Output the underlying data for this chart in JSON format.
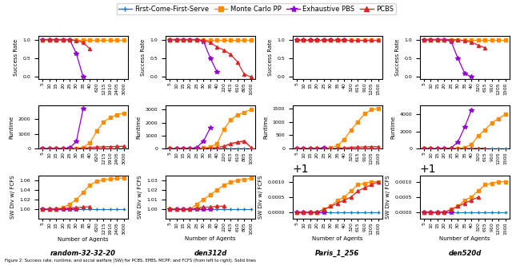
{
  "maps": [
    "random-32-32-20",
    "den312d",
    "Paris_1_256",
    "den520d"
  ],
  "legend": {
    "labels": [
      "First-Come-First-Serve",
      "Monte Carlo PP",
      "Exhaustive PBS",
      "PCBS"
    ],
    "colors": [
      "#1f77b4",
      "#ff8c00",
      "#9400d3",
      "#d62728"
    ],
    "markers": [
      "+",
      "s",
      "*",
      "^"
    ],
    "markersizes": [
      5,
      4,
      6,
      4
    ]
  },
  "colors": {
    "fcfs": "#1f77b4",
    "mcpp": "#ff8c00",
    "epbs": "#9400d3",
    "pcbs": "#d62728"
  },
  "markers": {
    "fcfs": "+",
    "mcpp": "s",
    "epbs": "*",
    "pcbs": "^"
  },
  "col0": {
    "x_labels": [
      "5",
      "10",
      "15",
      "20",
      "25",
      "30",
      "35",
      "40",
      "620",
      "1215",
      "1910",
      "2405",
      "3000"
    ],
    "success": {
      "fcfs": [
        1,
        1,
        1,
        1,
        1,
        1,
        1,
        1,
        1,
        1,
        1,
        1,
        1
      ],
      "mcpp": [
        1,
        1,
        1,
        1,
        1,
        1,
        1,
        1,
        1,
        1,
        1,
        1,
        1
      ],
      "epbs": [
        1,
        1,
        1,
        1,
        1,
        0.62,
        0.0,
        null,
        null,
        null,
        null,
        null,
        null
      ],
      "pcbs": [
        1,
        1,
        1,
        1,
        1,
        0.97,
        0.92,
        0.75,
        null,
        null,
        null,
        null,
        null
      ]
    },
    "runtime": {
      "fcfs": [
        0,
        0,
        0,
        0,
        0,
        0,
        0,
        0,
        0,
        0,
        0,
        0,
        0
      ],
      "mcpp": [
        0,
        0,
        2,
        5,
        10,
        30,
        100,
        400,
        1200,
        1800,
        2100,
        2300,
        2400
      ],
      "epbs": [
        0,
        0,
        3,
        10,
        60,
        500,
        2700,
        null,
        null,
        null,
        null,
        null,
        null
      ],
      "pcbs": [
        0,
        0,
        1,
        2,
        5,
        15,
        40,
        90,
        120,
        135,
        145,
        155,
        165
      ],
      "pcbs_err": [
        0,
        0,
        0.5,
        1,
        2,
        5,
        10,
        20,
        25,
        28,
        30,
        32,
        34
      ]
    },
    "sw": {
      "fcfs": [
        1,
        1,
        1,
        1,
        1,
        1,
        1,
        1,
        1,
        1,
        1,
        1,
        1
      ],
      "mcpp": [
        1,
        1,
        1,
        1.003,
        1.01,
        1.02,
        1.035,
        1.05,
        1.058,
        1.061,
        1.063,
        1.064,
        1.065
      ],
      "epbs": [
        1,
        1,
        1,
        1,
        1,
        1,
        null,
        null,
        null,
        null,
        null,
        null,
        null
      ],
      "pcbs": [
        1,
        1,
        1,
        1.001,
        1.002,
        1.003,
        1.004,
        1.005,
        null,
        null,
        null,
        null,
        null
      ]
    },
    "ylim_success": [
      -0.05,
      1.1
    ],
    "ylim_runtime": [
      0,
      2900
    ],
    "ylim_sw": [
      0.98,
      1.07
    ],
    "yticks_success": [
      0.0,
      0.5,
      1.0
    ],
    "yticks_runtime": [
      0,
      1000,
      2000
    ],
    "yticks_sw": [
      1.0,
      1.02,
      1.04,
      1.06
    ]
  },
  "col1": {
    "x_labels": [
      "5",
      "10",
      "15",
      "20",
      "25",
      "30",
      "35",
      "40",
      "220",
      "415",
      "610",
      "805",
      "1000"
    ],
    "success": {
      "fcfs": [
        1,
        1,
        1,
        1,
        1,
        1,
        1,
        1,
        1,
        1,
        1,
        1,
        1
      ],
      "mcpp": [
        1,
        1,
        1,
        1,
        1,
        1,
        1,
        1,
        1,
        1,
        1,
        1,
        1
      ],
      "epbs": [
        1,
        1,
        1,
        1,
        1,
        0.95,
        0.5,
        0.13,
        null,
        null,
        null,
        null,
        null
      ],
      "pcbs": [
        1,
        1,
        1,
        1,
        1,
        0.98,
        0.92,
        0.8,
        0.72,
        0.6,
        0.4,
        0.08,
        0.0
      ]
    },
    "runtime": {
      "fcfs": [
        0,
        0,
        0,
        0,
        0,
        0,
        0,
        0,
        0,
        0,
        0,
        0,
        0
      ],
      "mcpp": [
        0,
        0,
        2,
        8,
        20,
        60,
        150,
        400,
        1500,
        2200,
        2600,
        2800,
        3000
      ],
      "epbs": [
        0,
        0,
        5,
        20,
        100,
        600,
        1600,
        null,
        null,
        null,
        null,
        null,
        null
      ],
      "pcbs": [
        0,
        0,
        1,
        3,
        8,
        20,
        50,
        100,
        200,
        400,
        500,
        600,
        100
      ],
      "pcbs_err": [
        0,
        0,
        0.5,
        1,
        3,
        8,
        15,
        30,
        50,
        80,
        100,
        120,
        30
      ]
    },
    "sw": {
      "fcfs": [
        1,
        1,
        1,
        1,
        1,
        1,
        1,
        1,
        1,
        1,
        1,
        1,
        1
      ],
      "mcpp": [
        1,
        1,
        1,
        1,
        1.005,
        1.01,
        1.015,
        1.02,
        1.025,
        1.028,
        1.03,
        1.031,
        1.032
      ],
      "epbs": [
        1,
        1,
        1,
        1,
        1,
        1,
        1,
        null,
        null,
        null,
        null,
        null,
        null
      ],
      "pcbs": [
        1,
        1,
        1,
        1,
        1.001,
        1.002,
        1.002,
        1.003,
        1.003,
        null,
        null,
        null,
        null
      ]
    },
    "ylim_success": [
      -0.05,
      1.1
    ],
    "ylim_runtime": [
      0,
      3300
    ],
    "ylim_sw": [
      0.99,
      1.035
    ],
    "yticks_success": [
      0.0,
      0.5,
      1.0
    ],
    "yticks_runtime": [
      0,
      1000,
      2000,
      3000
    ],
    "yticks_sw": [
      1.0,
      1.01,
      1.02,
      1.03
    ]
  },
  "col2": {
    "x_labels": [
      "5",
      "10",
      "15",
      "20",
      "25",
      "30",
      "35",
      "40",
      "320",
      "615",
      "910",
      "1205",
      "1500"
    ],
    "success": {
      "fcfs": [
        1,
        1,
        1,
        1,
        1,
        1,
        1,
        1,
        1,
        1,
        1,
        1,
        1
      ],
      "mcpp": [
        1,
        1,
        1,
        1,
        1,
        1,
        1,
        1,
        1,
        1,
        1,
        1,
        1
      ],
      "epbs": [
        1,
        1,
        1,
        1,
        1,
        1,
        1,
        1,
        null,
        null,
        null,
        null,
        null
      ],
      "pcbs": [
        1,
        1,
        1,
        1,
        1,
        1,
        1,
        1,
        1,
        1,
        1,
        1,
        1
      ]
    },
    "runtime": {
      "fcfs": [
        0,
        0,
        0,
        0,
        0,
        0,
        0,
        0,
        0,
        0,
        0,
        0,
        0
      ],
      "mcpp": [
        0,
        0,
        2,
        5,
        15,
        40,
        120,
        350,
        700,
        1000,
        1300,
        1450,
        1500
      ],
      "epbs": [
        0,
        0,
        3,
        10,
        40,
        null,
        null,
        null,
        null,
        null,
        null,
        null,
        null
      ],
      "pcbs": [
        0,
        0,
        1,
        2,
        4,
        8,
        18,
        35,
        55,
        65,
        70,
        75,
        78
      ],
      "pcbs_err": [
        0,
        0,
        0.3,
        0.8,
        1.5,
        3,
        6,
        10,
        15,
        18,
        20,
        22,
        24
      ]
    },
    "sw": {
      "fcfs": [
        1,
        1,
        1,
        1,
        1,
        1,
        1,
        1,
        1,
        1,
        1,
        1,
        1
      ],
      "mcpp": [
        1,
        1,
        1,
        1,
        1.0001,
        1.0002,
        1.0004,
        1.0005,
        1.0007,
        1.0009,
        1.00095,
        1.001,
        1.001
      ],
      "epbs": [
        1,
        1,
        1,
        1,
        1,
        null,
        null,
        null,
        null,
        null,
        null,
        null,
        null
      ],
      "pcbs": [
        1,
        1,
        1,
        1,
        1.0001,
        1.0002,
        1.0003,
        1.0004,
        1.0005,
        1.0007,
        1.0008,
        1.0009,
        1.001
      ]
    },
    "ylim_success": [
      -0.05,
      1.1
    ],
    "ylim_runtime": [
      0,
      1600
    ],
    "ylim_sw": [
      0.9998,
      1.0012
    ],
    "yticks_success": [
      0.0,
      0.5,
      1.0
    ],
    "yticks_runtime": [
      0,
      500,
      1000,
      1500
    ],
    "yticks_sw": [
      1.0,
      1.0005,
      1.001
    ]
  },
  "col3": {
    "x_labels": [
      "5",
      "10",
      "15",
      "20",
      "25",
      "30",
      "35",
      "40",
      "320",
      "615",
      "910",
      "1205",
      "1500"
    ],
    "success": {
      "fcfs": [
        1,
        1,
        1,
        1,
        1,
        1,
        1,
        1,
        1,
        1,
        1,
        1,
        1
      ],
      "mcpp": [
        1,
        1,
        1,
        1,
        1,
        1,
        1,
        1,
        1,
        1,
        1,
        1,
        1
      ],
      "epbs": [
        1,
        1,
        1,
        1,
        0.95,
        0.5,
        0.1,
        0.0,
        null,
        null,
        null,
        null,
        null
      ],
      "pcbs": [
        1,
        1,
        1,
        1,
        1,
        0.99,
        0.97,
        0.93,
        0.85,
        0.78,
        null,
        null,
        null
      ]
    },
    "runtime": {
      "fcfs": [
        0,
        0,
        0,
        0,
        0,
        0,
        0,
        0,
        0,
        0,
        0,
        0,
        0
      ],
      "mcpp": [
        0,
        0,
        2,
        5,
        15,
        50,
        150,
        500,
        1500,
        2200,
        3000,
        3500,
        4000
      ],
      "epbs": [
        0,
        0,
        3,
        15,
        80,
        800,
        2500,
        4500,
        null,
        null,
        null,
        null,
        null
      ],
      "pcbs": [
        0,
        0,
        1,
        2,
        4,
        8,
        18,
        35,
        55,
        65,
        null,
        null,
        null
      ],
      "pcbs_err": [
        0,
        0,
        0.3,
        0.8,
        1.5,
        3,
        6,
        10,
        15,
        18,
        null,
        null,
        null
      ]
    },
    "sw": {
      "fcfs": [
        1,
        1,
        1,
        1,
        1,
        1,
        1,
        1,
        1,
        1,
        1,
        1,
        1
      ],
      "mcpp": [
        1,
        1,
        1,
        1,
        1.0001,
        1.0002,
        1.0004,
        1.0005,
        1.0007,
        1.0009,
        1.00095,
        1.001,
        1.001
      ],
      "epbs": [
        1,
        1,
        1,
        1,
        1,
        null,
        null,
        null,
        null,
        null,
        null,
        null,
        null
      ],
      "pcbs": [
        1,
        1,
        1,
        1,
        1.0001,
        1.0002,
        1.0003,
        1.0004,
        1.0005,
        null,
        null,
        null,
        null
      ]
    },
    "ylim_success": [
      -0.05,
      1.1
    ],
    "ylim_runtime": [
      0,
      5000
    ],
    "ylim_sw": [
      0.9998,
      1.0012
    ],
    "yticks_success": [
      0.0,
      0.5,
      1.0
    ],
    "yticks_runtime": [
      0,
      2000,
      4000
    ],
    "yticks_sw": [
      1.0,
      1.0005,
      1.001
    ]
  },
  "row_ylabels": [
    "Success Rate",
    "Runtime",
    "SW Div w/ FCFS"
  ],
  "xlabel": "Number of Agents",
  "caption": "Figure 2: Success rate, runtime, and social welfare (SW) for PCBS, EPBS, MCPP, and FCFS (from left to right). Solid lines"
}
